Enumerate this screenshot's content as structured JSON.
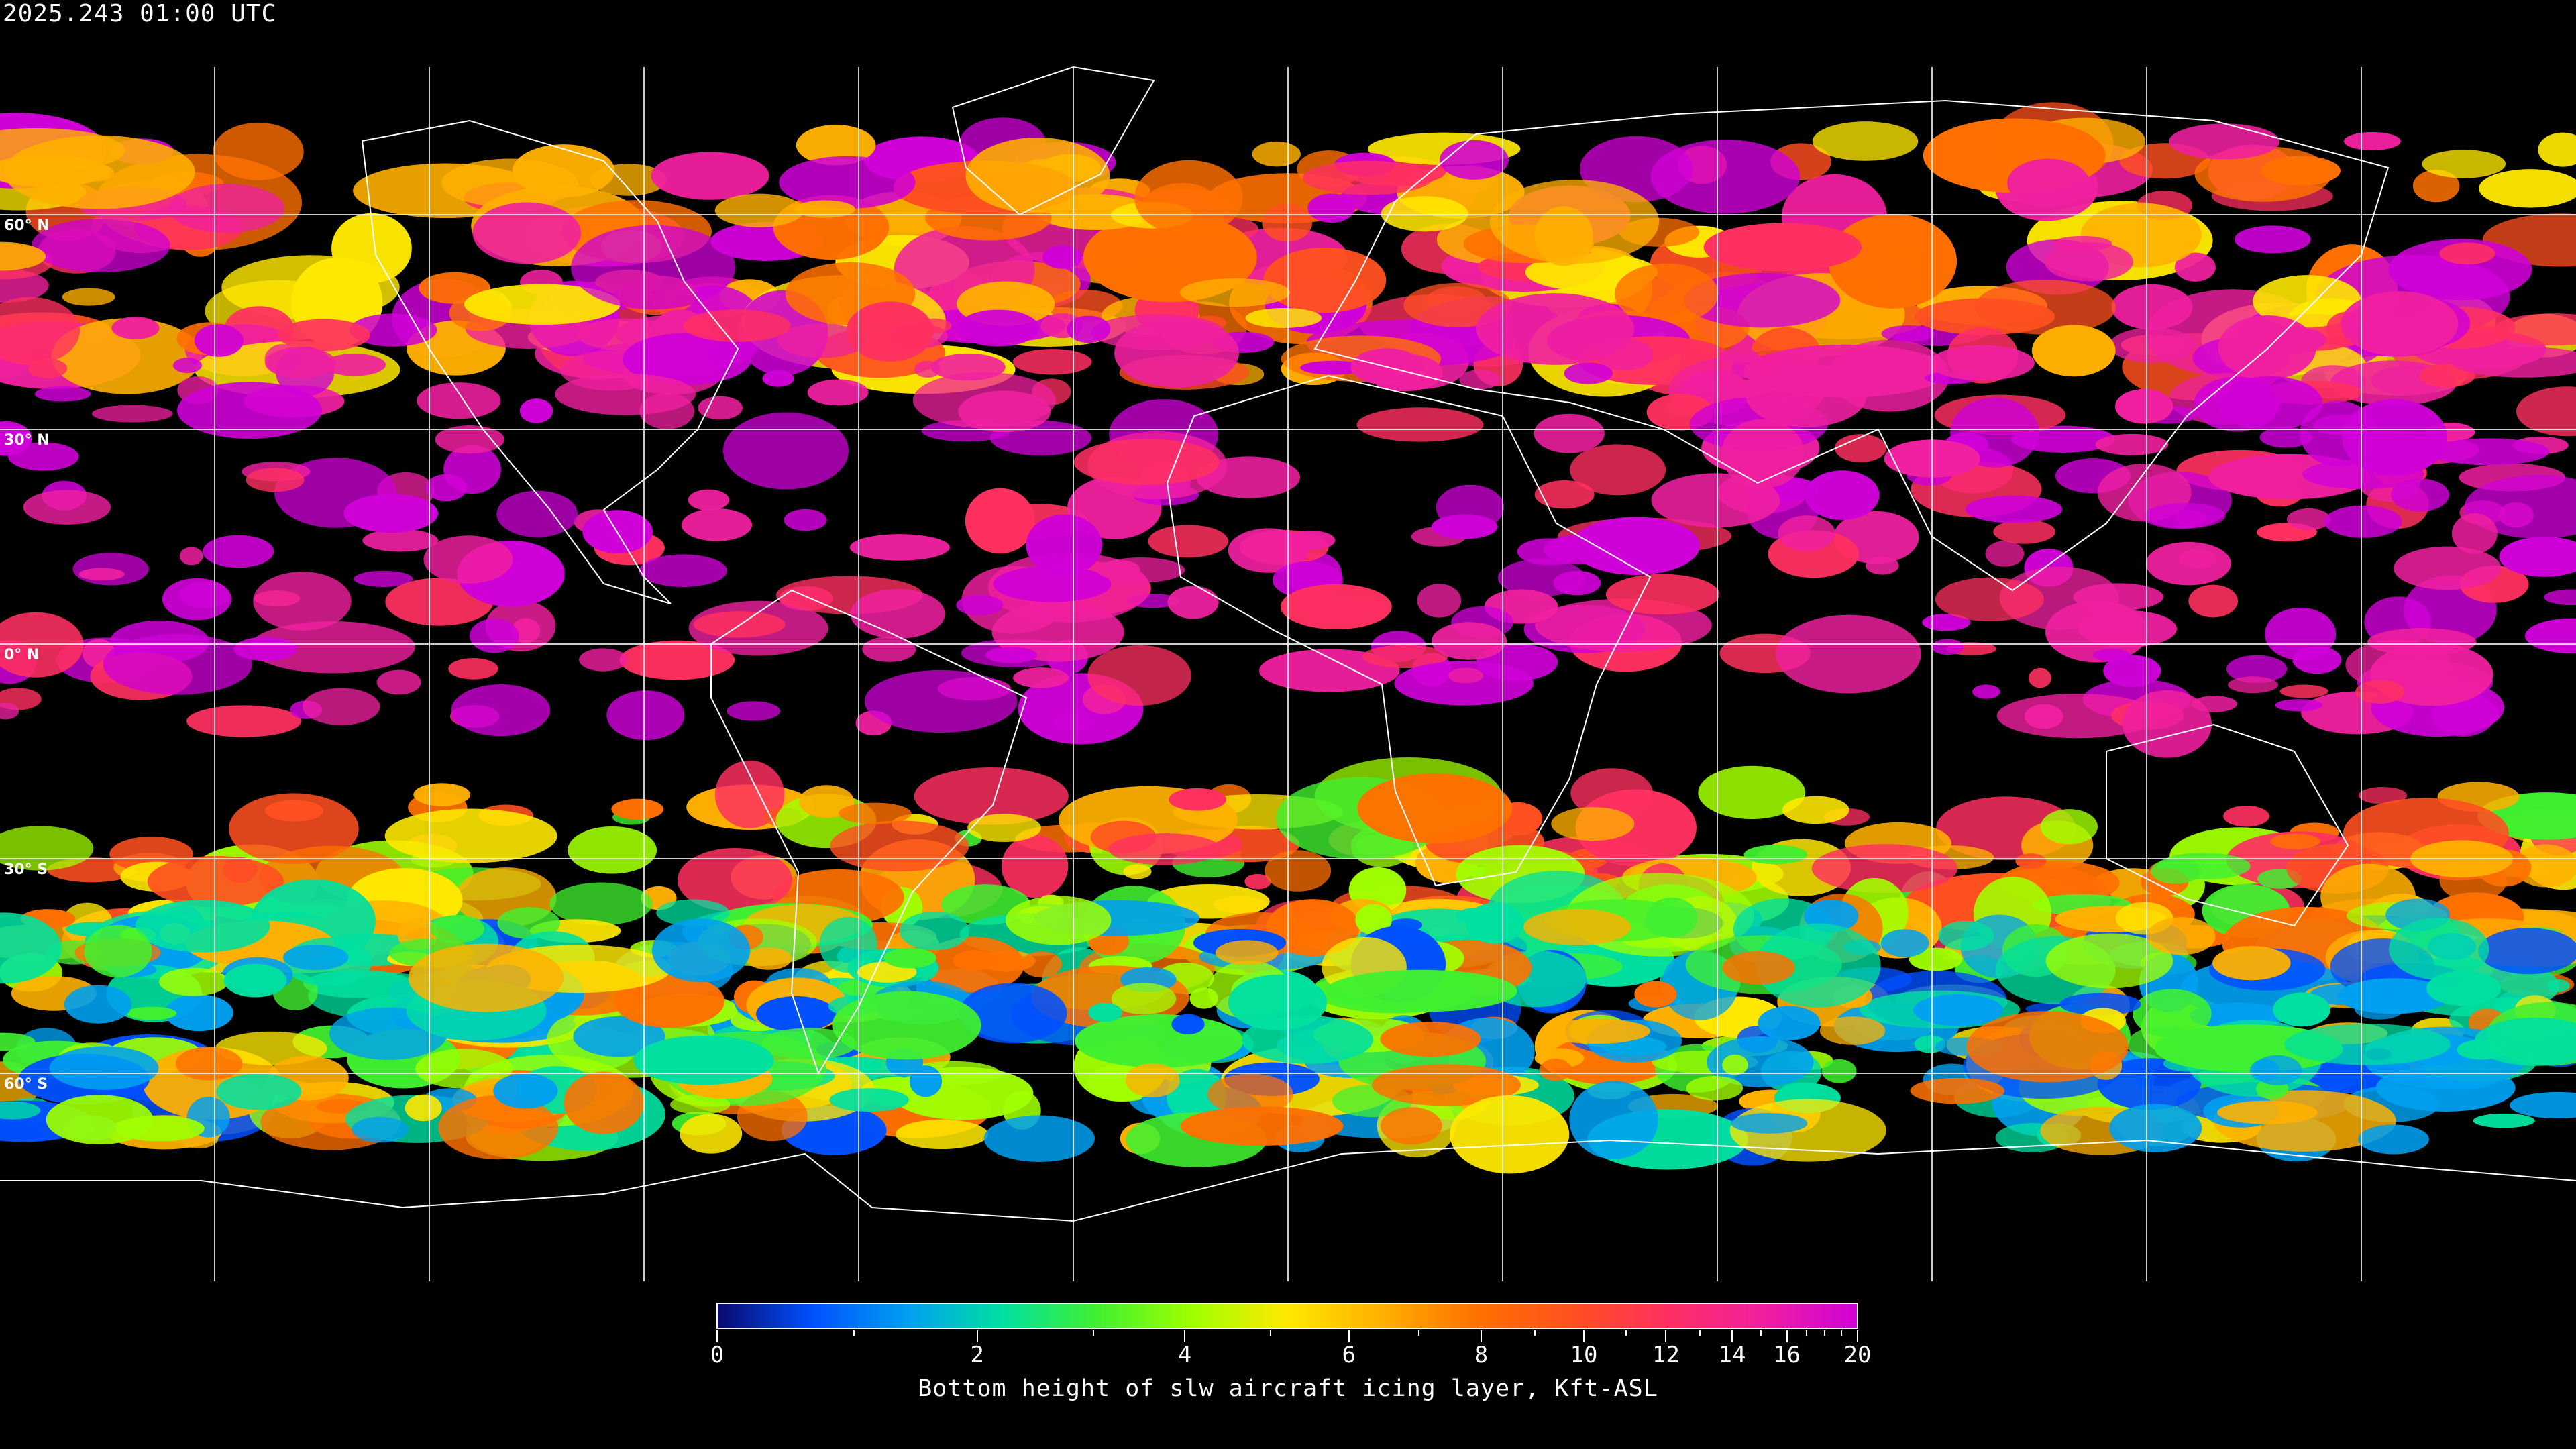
{
  "header": {
    "timestamp": "2025.243 01:00 UTC"
  },
  "map": {
    "projection": "equirectangular",
    "graticule_spacing_deg": 30,
    "background": "#000000",
    "coastline_color": "#ffffff",
    "lat_labels": [
      "60° N",
      "30° N",
      "0° N",
      "30° S",
      "60° S"
    ]
  },
  "colorbar": {
    "title": "Bottom height of slw aircraft icing layer, Kft-ASL",
    "min": 0,
    "max": 20,
    "tick_labels": [
      "0",
      "2",
      "4",
      "6",
      "8",
      "10",
      "12",
      "14",
      "16",
      "20"
    ],
    "tick_values": [
      0,
      2,
      4,
      6,
      8,
      10,
      12,
      14,
      16,
      20
    ],
    "minor_tick_values": [
      1,
      3,
      5,
      7,
      9,
      11,
      13,
      15,
      17,
      18,
      19
    ],
    "colors": [
      "#0a0a6e",
      "#0050ff",
      "#00a0f0",
      "#00e0a0",
      "#40f030",
      "#a0ff00",
      "#ffe800",
      "#ffb000",
      "#ff7000",
      "#ff5020",
      "#ff3060",
      "#f020a0",
      "#d000d8"
    ]
  }
}
